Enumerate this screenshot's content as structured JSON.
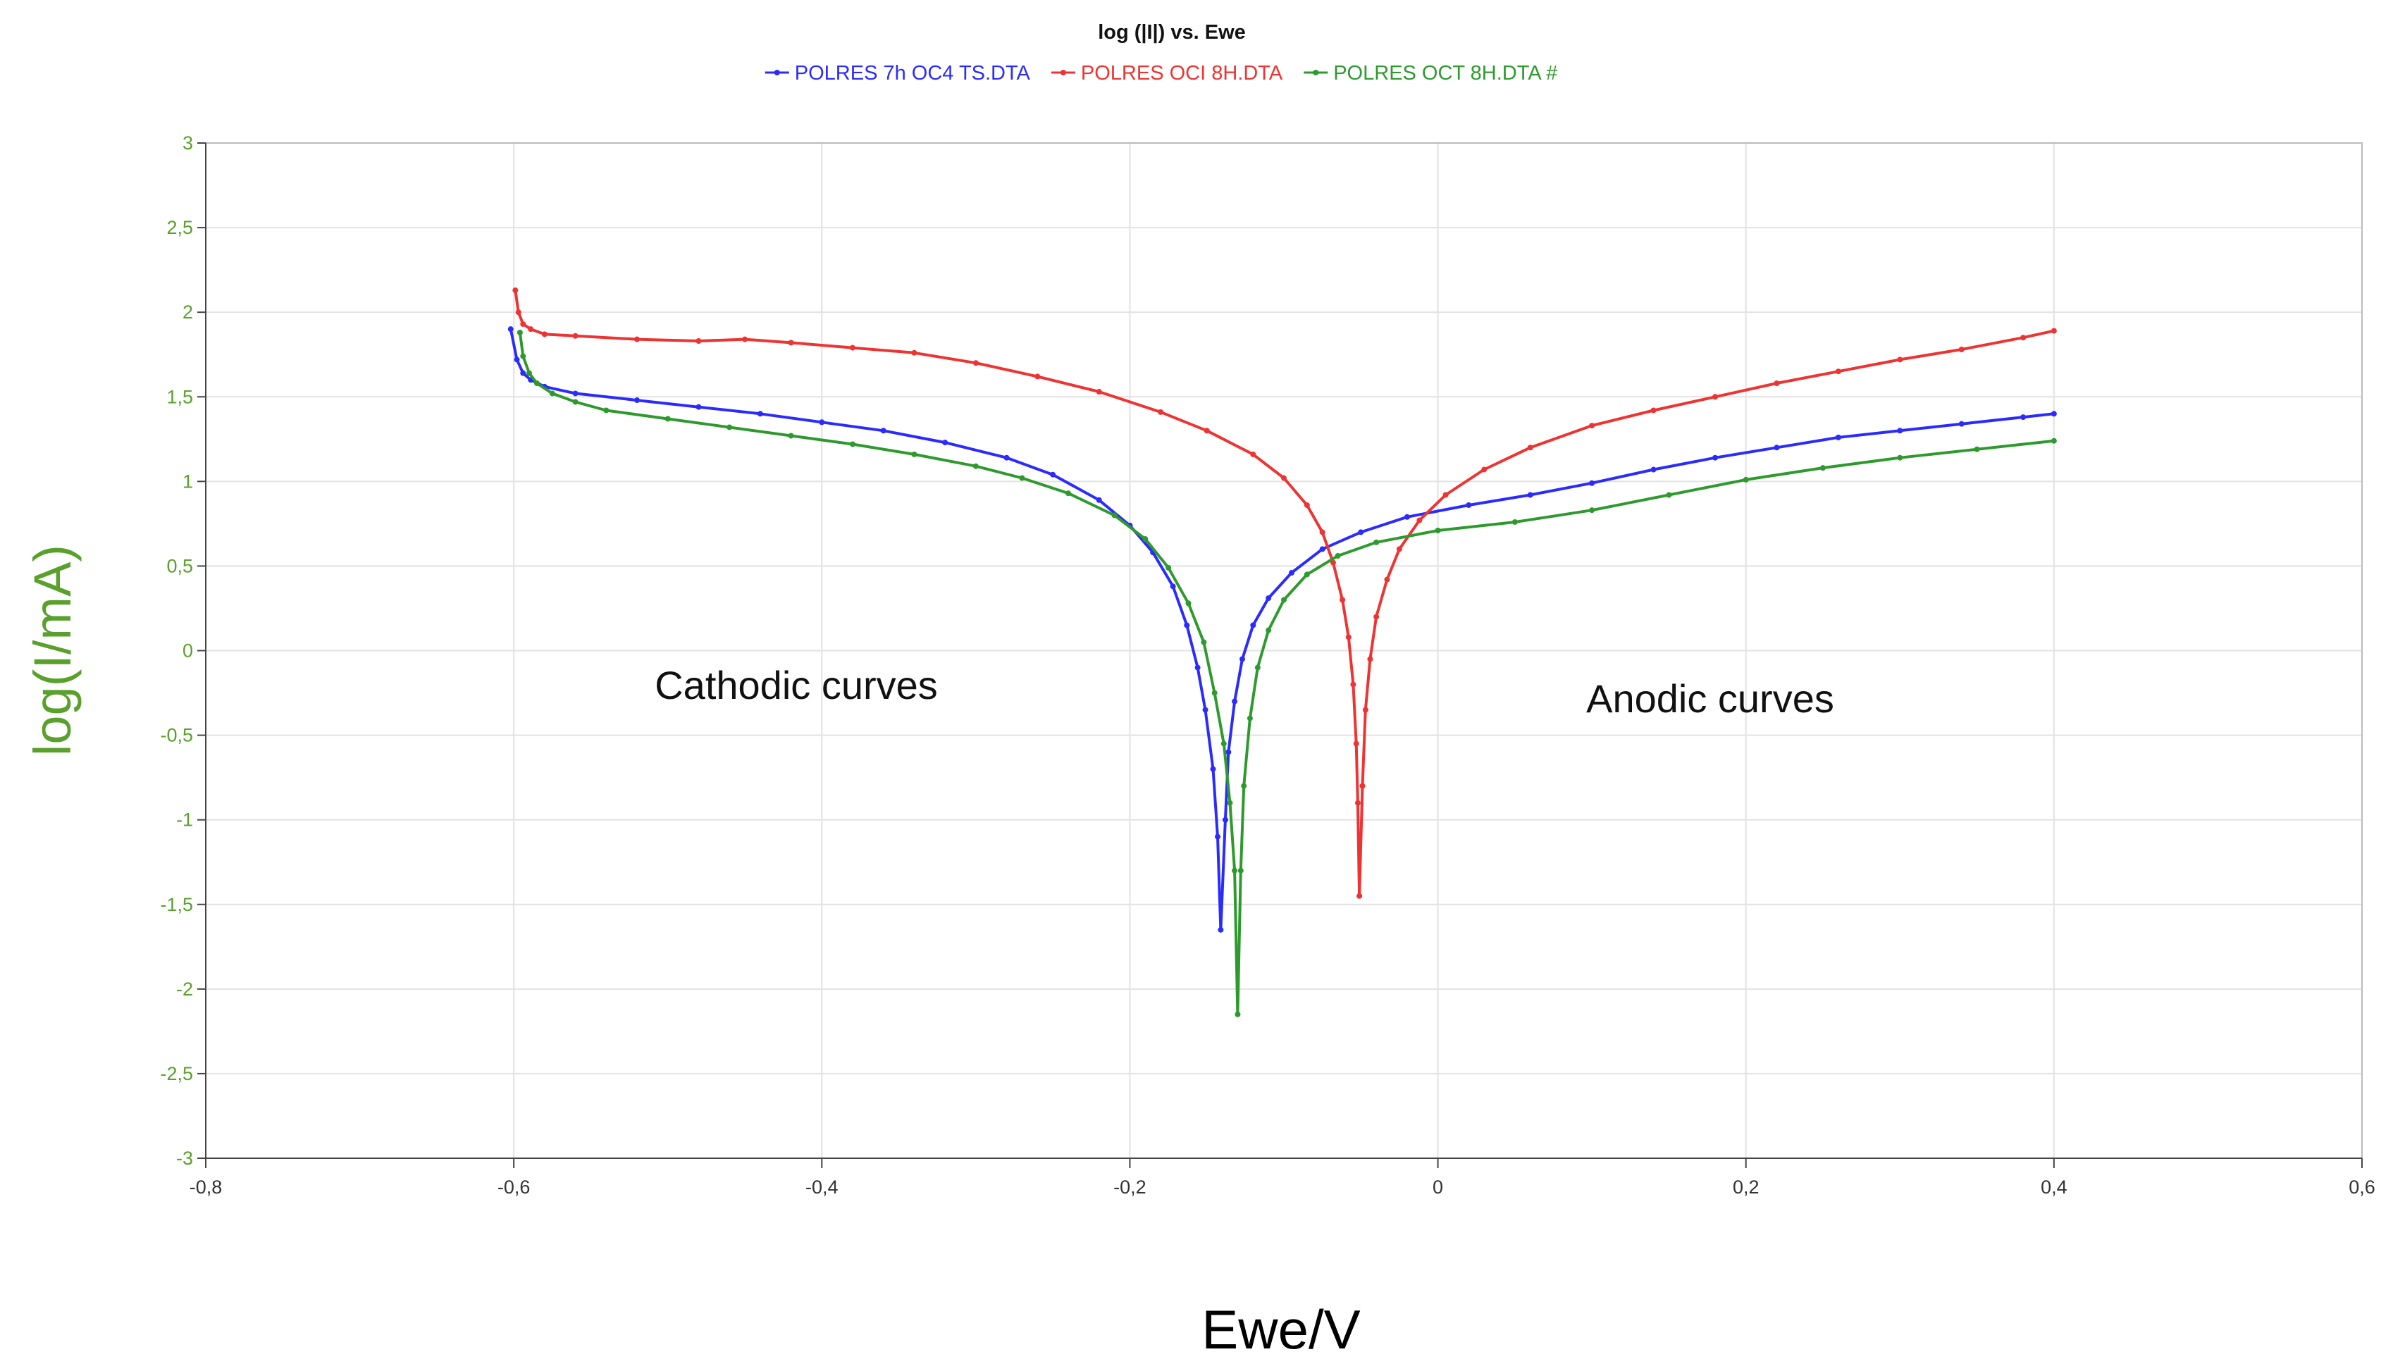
{
  "chart_data": {
    "type": "line",
    "title": "log (|I|) vs. Ewe",
    "xlabel": "Ewe/V",
    "ylabel": "log(I/mA)",
    "xlim": [
      -0.8,
      0.6
    ],
    "ylim": [
      -3,
      3
    ],
    "xticks": [
      -0.8,
      -0.6,
      -0.4,
      -0.2,
      0,
      0.2,
      0.4,
      0.6
    ],
    "xtick_labels": [
      "-0,8",
      "-0,6",
      "-0,4",
      "-0,2",
      "0",
      "0,2",
      "0,4",
      "0,6"
    ],
    "yticks": [
      3,
      2.5,
      2,
      1.5,
      1,
      0.5,
      0,
      -0.5,
      -1,
      -1.5,
      -2,
      -2.5,
      -3
    ],
    "ytick_labels": [
      "3",
      "2,5",
      "2",
      "1,5",
      "1",
      "0,5",
      "0",
      "-0,5",
      "-1",
      "-1,5",
      "-2",
      "-2,5",
      "-3"
    ],
    "grid": true,
    "legend_position": "top-center",
    "annotations": [
      {
        "text": "Cathodic curves",
        "x": -0.42,
        "y": -0.2
      },
      {
        "text": "Anodic curves",
        "x": 0.19,
        "y": -0.28
      }
    ],
    "series": [
      {
        "name": "POLRES 7h OC4 TS.DTA",
        "color": "#2b2bff",
        "points": [
          [
            -0.602,
            1.9
          ],
          [
            -0.598,
            1.72
          ],
          [
            -0.594,
            1.64
          ],
          [
            -0.589,
            1.6
          ],
          [
            -0.58,
            1.56
          ],
          [
            -0.56,
            1.52
          ],
          [
            -0.52,
            1.48
          ],
          [
            -0.48,
            1.44
          ],
          [
            -0.44,
            1.4
          ],
          [
            -0.4,
            1.35
          ],
          [
            -0.36,
            1.3
          ],
          [
            -0.32,
            1.23
          ],
          [
            -0.28,
            1.14
          ],
          [
            -0.25,
            1.04
          ],
          [
            -0.22,
            0.89
          ],
          [
            -0.2,
            0.74
          ],
          [
            -0.185,
            0.58
          ],
          [
            -0.172,
            0.38
          ],
          [
            -0.163,
            0.15
          ],
          [
            -0.156,
            -0.1
          ],
          [
            -0.151,
            -0.35
          ],
          [
            -0.146,
            -0.7
          ],
          [
            -0.143,
            -1.1
          ],
          [
            -0.141,
            -1.65
          ],
          [
            -0.138,
            -1.0
          ],
          [
            -0.136,
            -0.6
          ],
          [
            -0.132,
            -0.3
          ],
          [
            -0.127,
            -0.05
          ],
          [
            -0.12,
            0.15
          ],
          [
            -0.11,
            0.31
          ],
          [
            -0.095,
            0.46
          ],
          [
            -0.075,
            0.6
          ],
          [
            -0.05,
            0.7
          ],
          [
            -0.02,
            0.79
          ],
          [
            0.02,
            0.86
          ],
          [
            0.06,
            0.92
          ],
          [
            0.1,
            0.99
          ],
          [
            0.14,
            1.07
          ],
          [
            0.18,
            1.14
          ],
          [
            0.22,
            1.2
          ],
          [
            0.26,
            1.26
          ],
          [
            0.3,
            1.3
          ],
          [
            0.34,
            1.34
          ],
          [
            0.38,
            1.38
          ],
          [
            0.4,
            1.4
          ]
        ]
      },
      {
        "name": "POLRES OCI 8H.DTA",
        "color": "#ee3333",
        "points": [
          [
            -0.599,
            2.13
          ],
          [
            -0.597,
            2.0
          ],
          [
            -0.594,
            1.93
          ],
          [
            -0.589,
            1.9
          ],
          [
            -0.58,
            1.87
          ],
          [
            -0.56,
            1.86
          ],
          [
            -0.52,
            1.84
          ],
          [
            -0.48,
            1.83
          ],
          [
            -0.45,
            1.84
          ],
          [
            -0.42,
            1.82
          ],
          [
            -0.38,
            1.79
          ],
          [
            -0.34,
            1.76
          ],
          [
            -0.3,
            1.7
          ],
          [
            -0.26,
            1.62
          ],
          [
            -0.22,
            1.53
          ],
          [
            -0.18,
            1.41
          ],
          [
            -0.15,
            1.3
          ],
          [
            -0.12,
            1.16
          ],
          [
            -0.1,
            1.02
          ],
          [
            -0.085,
            0.86
          ],
          [
            -0.075,
            0.7
          ],
          [
            -0.068,
            0.52
          ],
          [
            -0.062,
            0.3
          ],
          [
            -0.058,
            0.08
          ],
          [
            -0.055,
            -0.2
          ],
          [
            -0.053,
            -0.55
          ],
          [
            -0.052,
            -0.9
          ],
          [
            -0.051,
            -1.45
          ],
          [
            -0.049,
            -0.8
          ],
          [
            -0.047,
            -0.35
          ],
          [
            -0.044,
            -0.05
          ],
          [
            -0.04,
            0.2
          ],
          [
            -0.033,
            0.42
          ],
          [
            -0.025,
            0.6
          ],
          [
            -0.012,
            0.77
          ],
          [
            0.005,
            0.92
          ],
          [
            0.03,
            1.07
          ],
          [
            0.06,
            1.2
          ],
          [
            0.1,
            1.33
          ],
          [
            0.14,
            1.42
          ],
          [
            0.18,
            1.5
          ],
          [
            0.22,
            1.58
          ],
          [
            0.26,
            1.65
          ],
          [
            0.3,
            1.72
          ],
          [
            0.34,
            1.78
          ],
          [
            0.38,
            1.85
          ],
          [
            0.4,
            1.89
          ]
        ]
      },
      {
        "name": "POLRES OCT 8H.DTA #",
        "color": "#2e9a2e",
        "points": [
          [
            -0.596,
            1.88
          ],
          [
            -0.594,
            1.74
          ],
          [
            -0.59,
            1.64
          ],
          [
            -0.585,
            1.58
          ],
          [
            -0.575,
            1.52
          ],
          [
            -0.56,
            1.47
          ],
          [
            -0.54,
            1.42
          ],
          [
            -0.5,
            1.37
          ],
          [
            -0.46,
            1.32
          ],
          [
            -0.42,
            1.27
          ],
          [
            -0.38,
            1.22
          ],
          [
            -0.34,
            1.16
          ],
          [
            -0.3,
            1.09
          ],
          [
            -0.27,
            1.02
          ],
          [
            -0.24,
            0.93
          ],
          [
            -0.21,
            0.8
          ],
          [
            -0.19,
            0.66
          ],
          [
            -0.175,
            0.49
          ],
          [
            -0.162,
            0.28
          ],
          [
            -0.152,
            0.05
          ],
          [
            -0.145,
            -0.25
          ],
          [
            -0.139,
            -0.55
          ],
          [
            -0.135,
            -0.9
          ],
          [
            -0.132,
            -1.3
          ],
          [
            -0.13,
            -2.15
          ],
          [
            -0.128,
            -1.3
          ],
          [
            -0.126,
            -0.8
          ],
          [
            -0.122,
            -0.4
          ],
          [
            -0.117,
            -0.1
          ],
          [
            -0.11,
            0.12
          ],
          [
            -0.1,
            0.3
          ],
          [
            -0.085,
            0.45
          ],
          [
            -0.065,
            0.56
          ],
          [
            -0.04,
            0.64
          ],
          [
            0.0,
            0.71
          ],
          [
            0.05,
            0.76
          ],
          [
            0.1,
            0.83
          ],
          [
            0.15,
            0.92
          ],
          [
            0.2,
            1.01
          ],
          [
            0.25,
            1.08
          ],
          [
            0.3,
            1.14
          ],
          [
            0.35,
            1.19
          ],
          [
            0.4,
            1.24
          ]
        ]
      }
    ]
  }
}
